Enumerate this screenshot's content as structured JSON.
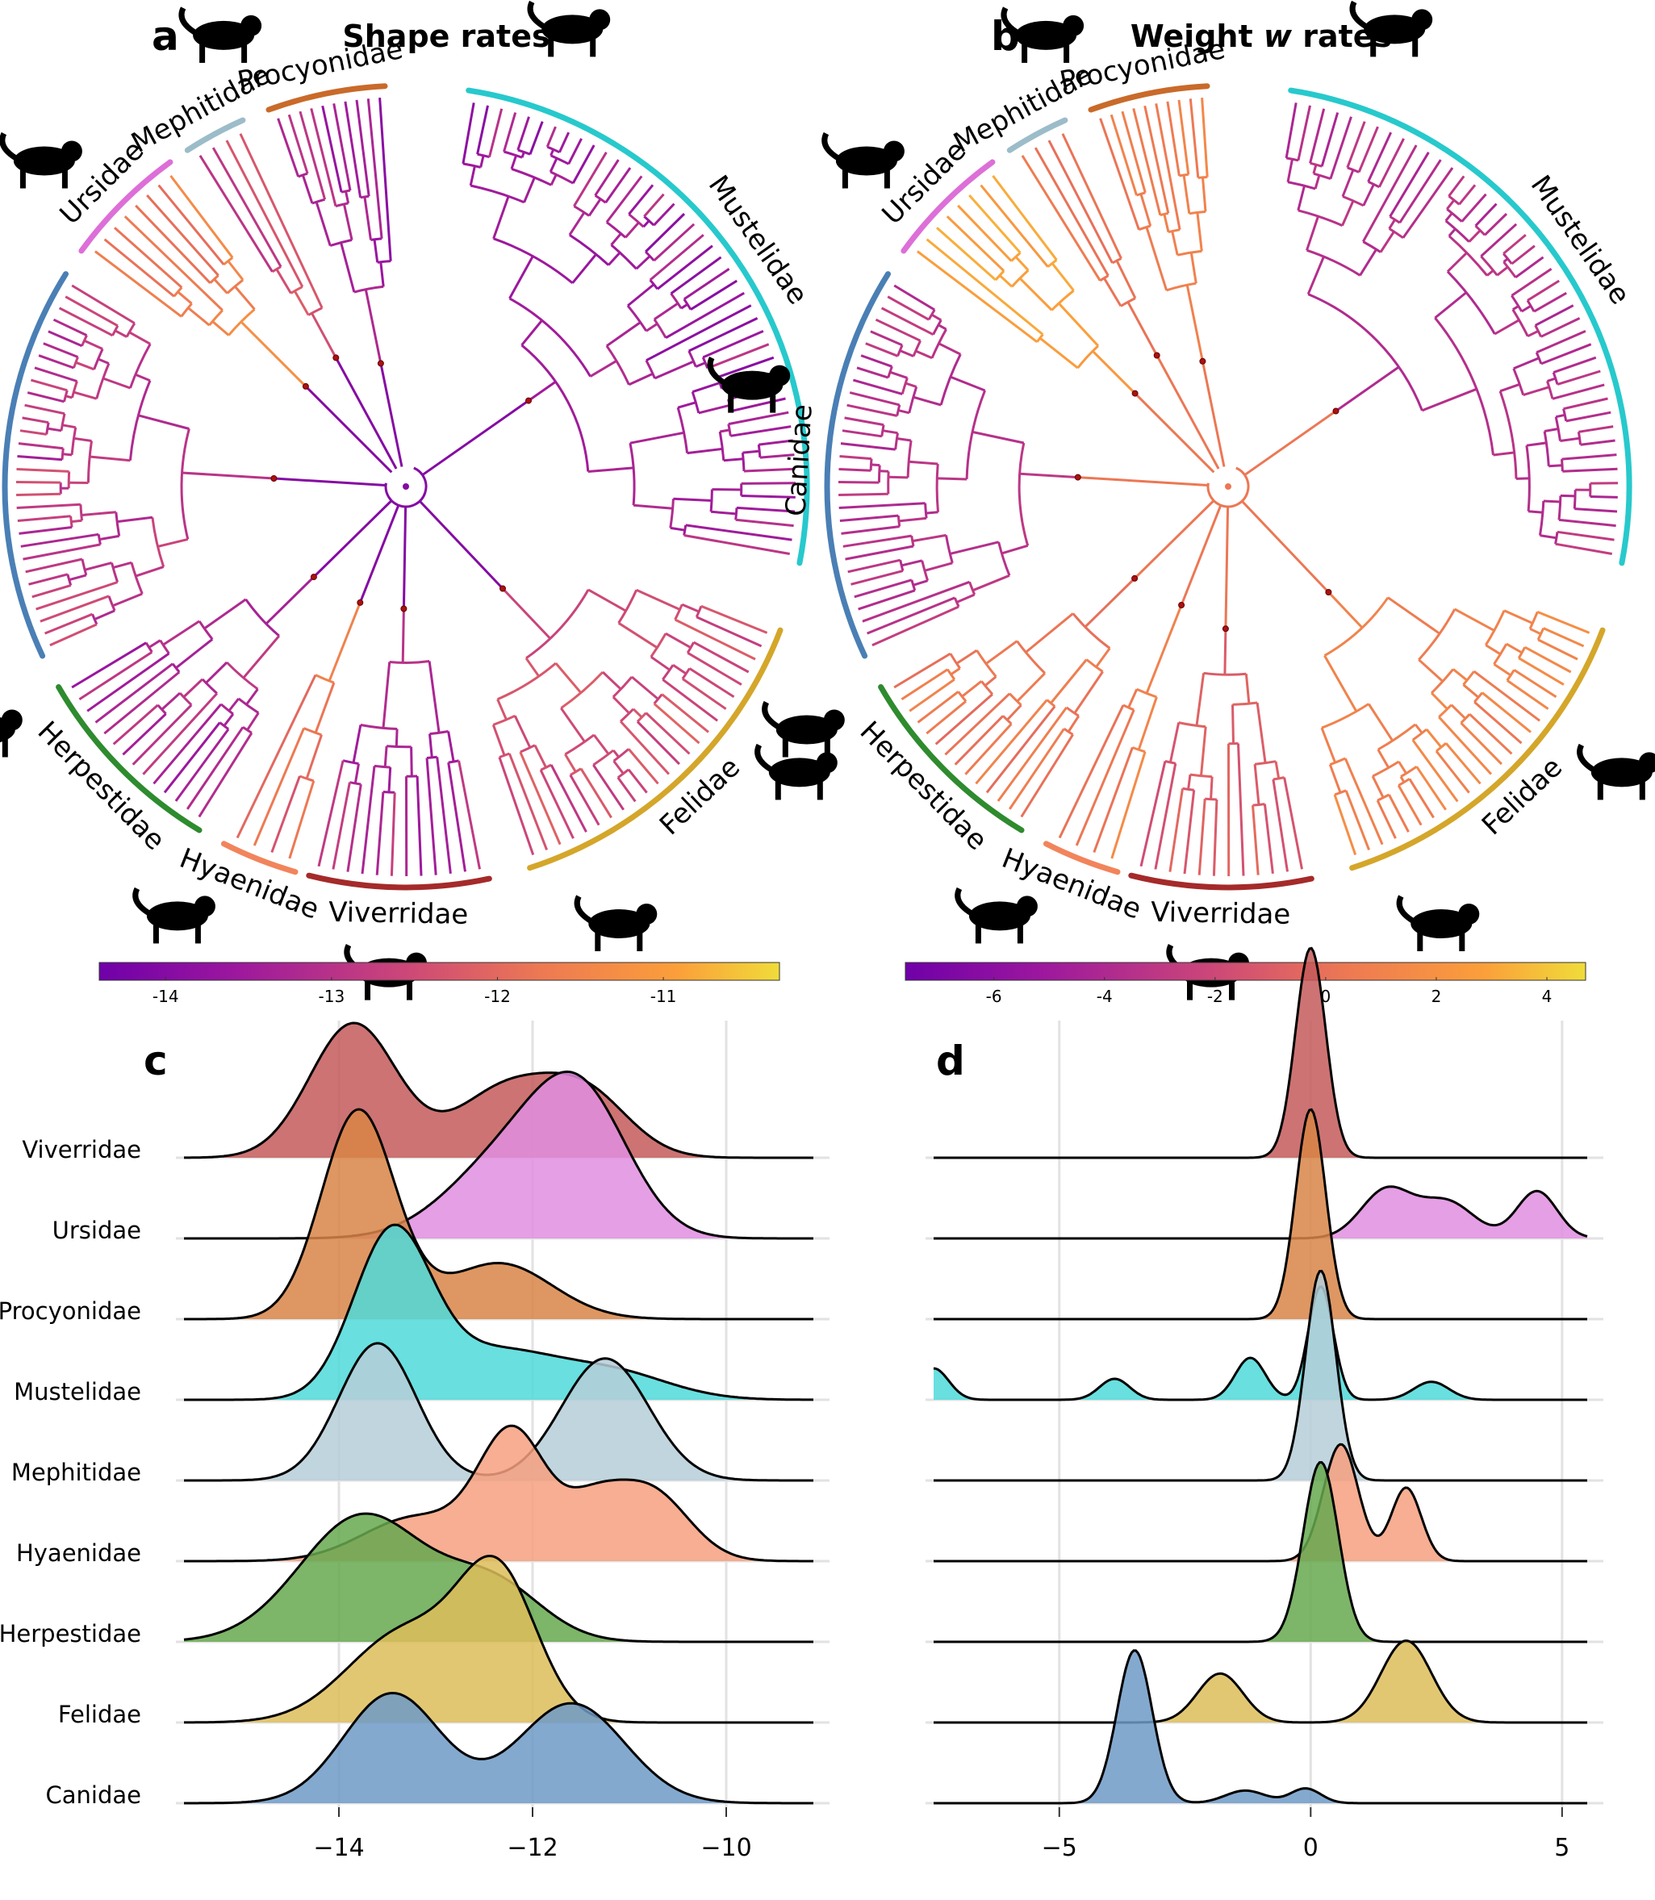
{
  "panels": {
    "a": {
      "letter": "a",
      "title": "Shape rates"
    },
    "b": {
      "letter": "b",
      "title_prefix": "Weight ",
      "title_var": "w",
      "title_suffix": " rates"
    },
    "c": {
      "letter": "c"
    },
    "d": {
      "letter": "d"
    }
  },
  "families_tree": [
    "Mustelidae",
    "Felidae",
    "Viverridae",
    "Hyaenidae",
    "Herpestidae",
    "Canidae",
    "Ursidae",
    "Mephitidae",
    "Procyonidae"
  ],
  "colorbars": {
    "a": {
      "min": -14.4,
      "max": -10.3,
      "ticks": [
        -14,
        -13,
        -12,
        -11
      ]
    },
    "b": {
      "min": -7.6,
      "max": 4.7,
      "ticks": [
        -6,
        -4,
        -2,
        0,
        2,
        4
      ],
      "tick_labels": [
        "-6",
        "-4",
        "-2",
        "0",
        "2",
        "4"
      ]
    }
  },
  "chart_data": [
    {
      "type": "tree",
      "title": "Shape rates",
      "description_values": "circular phylogeny of Carnivora, branches colored by log shape evolutionary rate",
      "families": [
        "Mustelidae",
        "Felidae",
        "Viverridae",
        "Hyaenidae",
        "Herpestidae",
        "Canidae",
        "Ursidae",
        "Mephitidae",
        "Procyonidae"
      ],
      "family_colors": {
        "Mustelidae": "#27c9cc",
        "Felidae": "#d4a62a",
        "Viverridae": "#a52a2a",
        "Hyaenidae": "#f2845c",
        "Herpestidae": "#2e8b2e",
        "Canidae": "#4a7fb5",
        "Ursidae": "#dd6fd8",
        "Mephitidae": "#9cbcc9",
        "Procyonidae": "#c96a2a"
      },
      "family_rate": {
        "Mustelidae": -13.4,
        "Felidae": -12.4,
        "Viverridae": -13.2,
        "Hyaenidae": -11.8,
        "Herpestidae": -13.1,
        "Canidae": -12.9,
        "Ursidae": -11.4,
        "Mephitidae": -12.4,
        "Procyonidae": -13.4
      },
      "backbone_rate": -14.0
    },
    {
      "type": "tree",
      "title": "Weight w rates",
      "description_values": "circular phylogeny of Carnivora, branches colored by log weight rate",
      "families": [
        "Mustelidae",
        "Felidae",
        "Viverridae",
        "Hyaenidae",
        "Herpestidae",
        "Canidae",
        "Ursidae",
        "Mephitidae",
        "Procyonidae"
      ],
      "family_rate": {
        "Mustelidae": -3.5,
        "Felidae": 1.0,
        "Viverridae": -1.0,
        "Hyaenidae": 0.8,
        "Herpestidae": 0.3,
        "Canidae": -3.4,
        "Ursidae": 2.8,
        "Mephitidae": 0.4,
        "Procyonidae": 0.6
      },
      "backbone_rate": 0.3
    },
    {
      "type": "ridgeline",
      "xlim": [
        -15.6,
        -9.1
      ],
      "x_ticks": [
        -14,
        -12,
        -10
      ],
      "x_tick_labels": [
        "−14",
        "−12",
        "−10"
      ],
      "series": [
        {
          "name": "Viverridae",
          "color": "#c45a5a",
          "components": [
            [
              0.55,
              -13.85,
              0.45
            ],
            [
              0.3,
              -12.3,
              0.5
            ],
            [
              0.25,
              -11.45,
              0.45
            ]
          ]
        },
        {
          "name": "Ursidae",
          "color": "#e08ee0",
          "components": [
            [
              0.6,
              -11.5,
              0.5
            ],
            [
              0.4,
              -12.3,
              0.6
            ]
          ]
        },
        {
          "name": "Procyonidae",
          "color": "#d88547",
          "components": [
            [
              0.72,
              -13.8,
              0.38
            ],
            [
              0.28,
              -12.35,
              0.55
            ]
          ]
        },
        {
          "name": "Mustelidae",
          "color": "#4fd9d9",
          "components": [
            [
              0.6,
              -13.45,
              0.4
            ],
            [
              0.25,
              -12.4,
              0.6
            ],
            [
              0.15,
              -11.2,
              0.6
            ]
          ]
        },
        {
          "name": "Mephitidae",
          "color": "#b6ced8",
          "components": [
            [
              0.5,
              -13.6,
              0.4
            ],
            [
              0.5,
              -11.25,
              0.45
            ]
          ]
        },
        {
          "name": "Hyaenidae",
          "color": "#f6a07f",
          "components": [
            [
              0.22,
              -13.2,
              0.55
            ],
            [
              0.4,
              -12.2,
              0.35
            ],
            [
              0.12,
              -11.4,
              0.3
            ],
            [
              0.26,
              -10.8,
              0.4
            ]
          ]
        },
        {
          "name": "Herpestidae",
          "color": "#66a84f",
          "components": [
            [
              0.75,
              -13.75,
              0.65
            ],
            [
              0.25,
              -12.4,
              0.5
            ]
          ]
        },
        {
          "name": "Felidae",
          "color": "#ddbd5a",
          "components": [
            [
              0.5,
              -13.3,
              0.6
            ],
            [
              0.5,
              -12.35,
              0.4
            ]
          ]
        },
        {
          "name": "Canidae",
          "color": "#6f9ac7",
          "components": [
            [
              0.5,
              -13.45,
              0.5
            ],
            [
              0.5,
              -11.6,
              0.55
            ]
          ]
        }
      ]
    },
    {
      "type": "ridgeline",
      "xlim": [
        -7.5,
        5.5
      ],
      "x_ticks": [
        -5,
        0,
        5
      ],
      "x_tick_labels": [
        "−5",
        "0",
        "5"
      ],
      "series": [
        {
          "name": "Viverridae",
          "color": "#c45a5a",
          "components": [
            [
              1.0,
              0.0,
              0.3
            ]
          ]
        },
        {
          "name": "Ursidae",
          "color": "#e08ee0",
          "components": [
            [
              0.38,
              1.5,
              0.5
            ],
            [
              0.32,
              2.7,
              0.55
            ],
            [
              0.3,
              4.5,
              0.4
            ]
          ]
        },
        {
          "name": "Procyonidae",
          "color": "#d88547",
          "components": [
            [
              1.0,
              0.0,
              0.3
            ]
          ]
        },
        {
          "name": "Mustelidae",
          "color": "#4fd9d9",
          "components": [
            [
              0.15,
              -7.5,
              0.3
            ],
            [
              0.1,
              -3.9,
              0.3
            ],
            [
              0.2,
              -1.2,
              0.3
            ],
            [
              0.45,
              0.2,
              0.25
            ],
            [
              0.1,
              2.4,
              0.35
            ]
          ]
        },
        {
          "name": "Mephitidae",
          "color": "#b6ced8",
          "components": [
            [
              1.0,
              0.2,
              0.3
            ]
          ]
        },
        {
          "name": "Hyaenidae",
          "color": "#f6a07f",
          "components": [
            [
              0.65,
              0.6,
              0.35
            ],
            [
              0.35,
              1.9,
              0.3
            ]
          ]
        },
        {
          "name": "Herpestidae",
          "color": "#66a84f",
          "components": [
            [
              1.0,
              0.2,
              0.35
            ]
          ]
        },
        {
          "name": "Felidae",
          "color": "#ddbd5a",
          "components": [
            [
              0.35,
              -1.8,
              0.45
            ],
            [
              0.65,
              1.9,
              0.5
            ]
          ]
        },
        {
          "name": "Canidae",
          "color": "#6f9ac7",
          "components": [
            [
              0.85,
              -3.5,
              0.35
            ],
            [
              0.08,
              -1.3,
              0.4
            ],
            [
              0.07,
              -0.1,
              0.3
            ]
          ]
        }
      ]
    }
  ]
}
